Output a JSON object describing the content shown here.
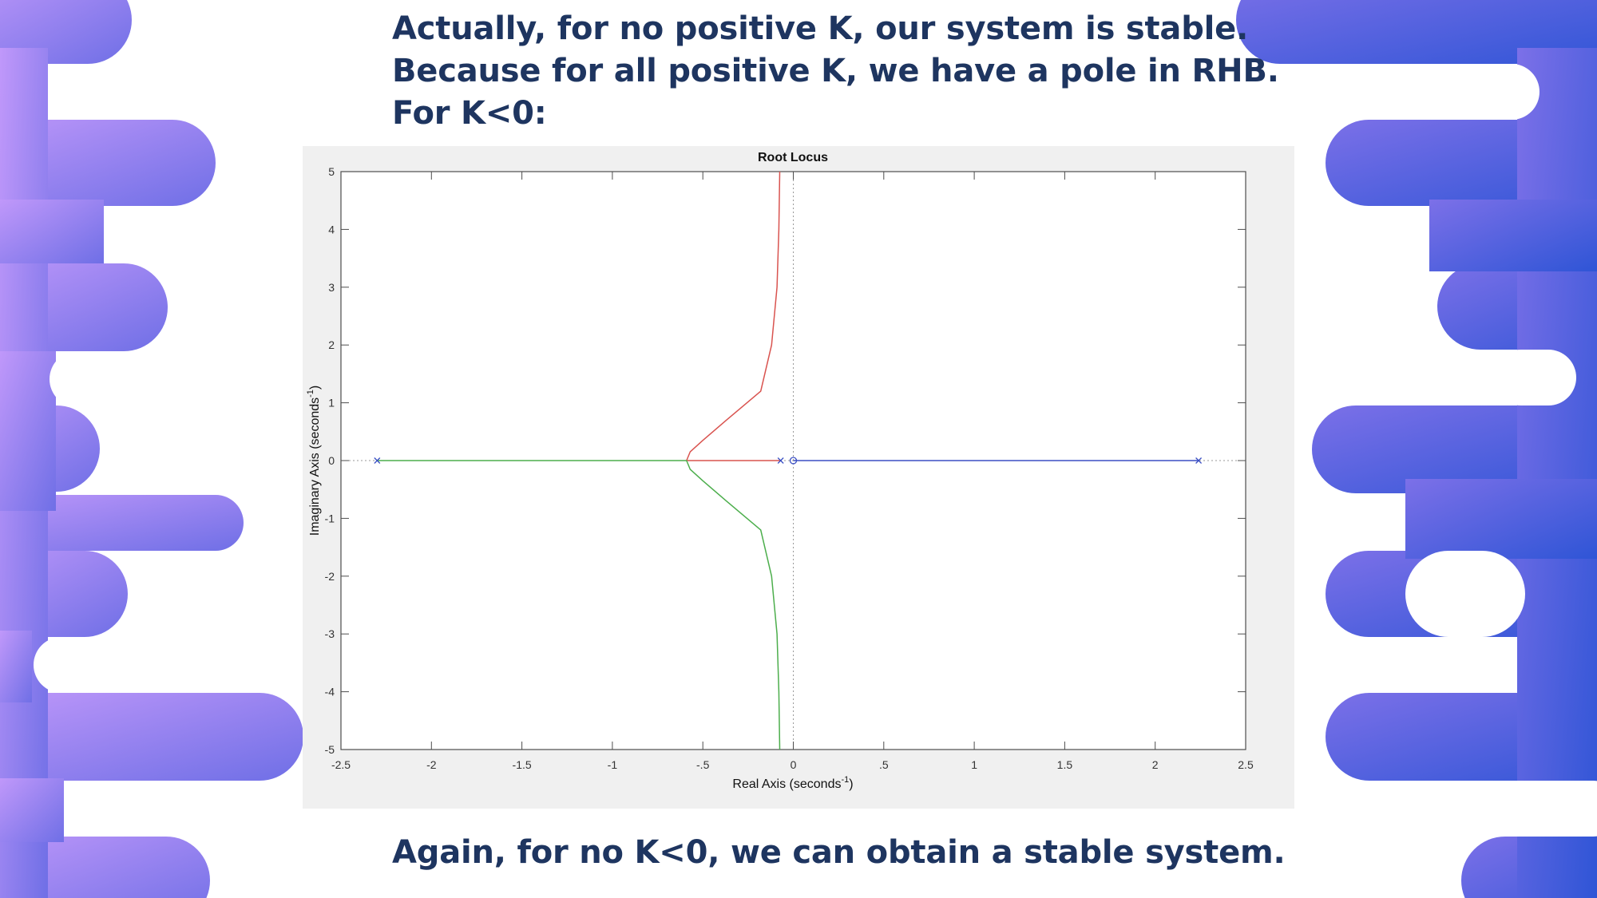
{
  "slide": {
    "heading_lines": [
      "Actually, for no positive K, our system is stable.",
      "Because for all positive K, we have a pole in RHB.",
      "For K<0:"
    ],
    "footer": "Again, for no K<0, we can obtain a stable system.",
    "text_color": "#1e3560",
    "background_gradient": [
      "#b892f8",
      "#3456d8"
    ]
  },
  "chart_data": {
    "type": "line",
    "title": "Root Locus",
    "xlabel": "Real Axis (seconds",
    "ylabel": "Imaginary Axis (seconds",
    "unit_exponent": "-1",
    "unit_close": ")",
    "xlim": [
      -2.5,
      2.5
    ],
    "ylim": [
      -5,
      5
    ],
    "xticks": [
      -2.5,
      -2,
      -1.5,
      -1,
      -0.5,
      0,
      0.5,
      1,
      1.5,
      2,
      2.5
    ],
    "yticks": [
      -5,
      -4,
      -3,
      -2,
      -1,
      0,
      1,
      2,
      3,
      4,
      5
    ],
    "grid": false,
    "poles": [
      -2.3,
      -0.07,
      2.24
    ],
    "zeros": [
      0
    ],
    "series": [
      {
        "color": "#d9534f",
        "points": [
          [
            -0.07,
            0
          ],
          [
            -0.59,
            0
          ],
          [
            -0.57,
            0.15
          ],
          [
            -0.5,
            0.35
          ],
          [
            -0.37,
            0.7
          ],
          [
            -0.18,
            1.2
          ],
          [
            -0.12,
            2.0
          ],
          [
            -0.09,
            3.0
          ],
          [
            -0.08,
            4.0
          ],
          [
            -0.075,
            5.0
          ]
        ]
      },
      {
        "color": "#4cae4c",
        "points": [
          [
            -2.3,
            0
          ],
          [
            -0.59,
            0
          ],
          [
            -0.57,
            -0.15
          ],
          [
            -0.5,
            -0.35
          ],
          [
            -0.37,
            -0.7
          ],
          [
            -0.18,
            -1.2
          ],
          [
            -0.12,
            -2.0
          ],
          [
            -0.09,
            -3.0
          ],
          [
            -0.08,
            -4.0
          ],
          [
            -0.075,
            -5.0
          ]
        ]
      },
      {
        "color": "#3a4fc4",
        "points": [
          [
            2.24,
            0
          ],
          [
            0,
            0
          ]
        ]
      }
    ]
  }
}
